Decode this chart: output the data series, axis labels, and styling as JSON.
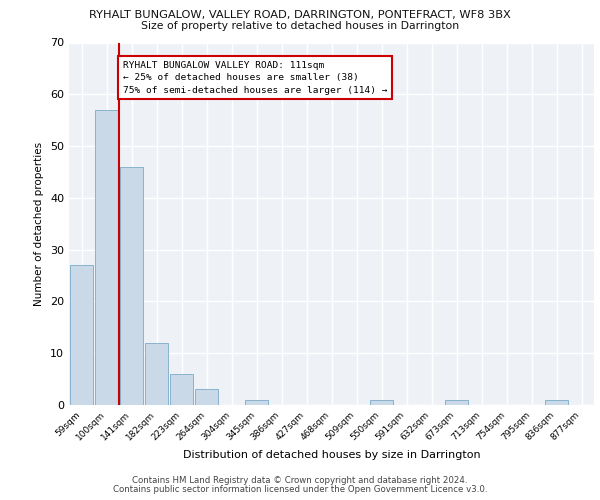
{
  "title_line1": "RYHALT BUNGALOW, VALLEY ROAD, DARRINGTON, PONTEFRACT, WF8 3BX",
  "title_line2": "Size of property relative to detached houses in Darrington",
  "xlabel": "Distribution of detached houses by size in Darrington",
  "ylabel": "Number of detached properties",
  "bar_labels": [
    "59sqm",
    "100sqm",
    "141sqm",
    "182sqm",
    "223sqm",
    "264sqm",
    "304sqm",
    "345sqm",
    "386sqm",
    "427sqm",
    "468sqm",
    "509sqm",
    "550sqm",
    "591sqm",
    "632sqm",
    "673sqm",
    "713sqm",
    "754sqm",
    "795sqm",
    "836sqm",
    "877sqm"
  ],
  "bar_values": [
    27,
    57,
    46,
    12,
    6,
    3,
    0,
    1,
    0,
    0,
    0,
    0,
    1,
    0,
    0,
    1,
    0,
    0,
    0,
    1,
    0
  ],
  "bar_color": "#c9d9e8",
  "bar_edgecolor": "#7aaac8",
  "vline_x": 1.5,
  "vline_color": "#cc0000",
  "annotation_line1": "RYHALT BUNGALOW VALLEY ROAD: 111sqm",
  "annotation_line2": "← 25% of detached houses are smaller (38)",
  "annotation_line3": "75% of semi-detached houses are larger (114) →",
  "annotation_box_color": "white",
  "annotation_box_edgecolor": "#cc0000",
  "ylim": [
    0,
    70
  ],
  "yticks": [
    0,
    10,
    20,
    30,
    40,
    50,
    60,
    70
  ],
  "footer_line1": "Contains HM Land Registry data © Crown copyright and database right 2024.",
  "footer_line2": "Contains public sector information licensed under the Open Government Licence v3.0.",
  "plot_bg_color": "#eef2f7"
}
